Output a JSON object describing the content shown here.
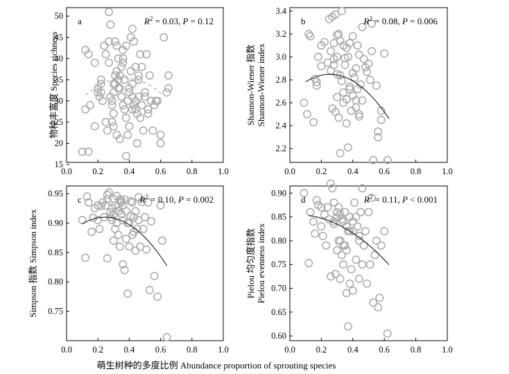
{
  "figure": {
    "x_axis_label": "萌生树种的多度比例 Abundance proportion of sprouting species"
  },
  "chart_data": [
    {
      "type": "scatter",
      "panel_label": "a",
      "stat_r2": "0.03",
      "stat_p": "P = 0.12",
      "ylabel_cn": "物种丰富度",
      "ylabel_en": "Species richness",
      "xlim": [
        0,
        1.0
      ],
      "ylim": [
        15.5,
        52
      ],
      "x_ticks": [
        "0.0",
        "0.2",
        "0.4",
        "0.6",
        "0.8",
        "1.0"
      ],
      "x_tick_values": [
        0,
        0.2,
        0.4,
        0.6,
        0.8,
        1.0
      ],
      "y_ticks": [
        "15",
        "20",
        "25",
        "30",
        "35",
        "40",
        "45",
        "50"
      ],
      "y_tick_values": [
        15,
        20,
        25,
        30,
        35,
        40,
        45,
        50
      ],
      "fit": {
        "style": "dashed",
        "coef": [
          26.5,
          48,
          -65
        ],
        "x_range": [
          0.12,
          0.62
        ]
      },
      "x": [
        0.1,
        0.12,
        0.12,
        0.14,
        0.14,
        0.15,
        0.18,
        0.18,
        0.2,
        0.2,
        0.21,
        0.22,
        0.22,
        0.23,
        0.24,
        0.25,
        0.26,
        0.27,
        0.27,
        0.28,
        0.28,
        0.29,
        0.29,
        0.3,
        0.3,
        0.3,
        0.31,
        0.31,
        0.32,
        0.32,
        0.33,
        0.33,
        0.34,
        0.34,
        0.34,
        0.35,
        0.35,
        0.36,
        0.36,
        0.36,
        0.37,
        0.37,
        0.38,
        0.38,
        0.39,
        0.39,
        0.4,
        0.4,
        0.41,
        0.41,
        0.42,
        0.42,
        0.42,
        0.43,
        0.43,
        0.44,
        0.44,
        0.45,
        0.45,
        0.46,
        0.46,
        0.47,
        0.47,
        0.48,
        0.49,
        0.5,
        0.5,
        0.51,
        0.52,
        0.52,
        0.53,
        0.54,
        0.55,
        0.56,
        0.57,
        0.58,
        0.6,
        0.6,
        0.62,
        0.64,
        0.65,
        0.65,
        0.3,
        0.32,
        0.35,
        0.38,
        0.27,
        0.25,
        0.44,
        0.48,
        0.33,
        0.4,
        0.36,
        0.29,
        0.46,
        0.31,
        0.42,
        0.22
      ],
      "y": [
        18,
        42,
        28,
        41,
        18,
        29,
        39,
        24,
        32,
        33,
        31,
        34,
        35,
        30,
        43,
        41,
        23,
        44,
        51,
        48,
        31,
        25,
        30,
        27,
        24,
        32,
        44,
        36,
        22,
        43,
        40,
        35,
        21,
        36,
        33,
        31,
        38,
        42,
        39,
        29,
        28,
        35,
        43,
        17,
        30,
        22,
        24,
        33,
        45,
        37,
        28,
        47,
        34,
        29,
        44,
        30,
        38,
        20,
        27,
        31,
        35,
        26,
        41,
        29,
        23,
        32,
        31,
        41,
        27,
        28,
        36,
        30,
        23,
        29,
        30,
        30,
        20,
        22,
        45,
        32,
        36,
        33,
        34,
        37,
        31,
        26,
        39,
        25,
        28,
        38,
        33,
        32,
        40,
        29,
        36,
        34,
        31,
        32
      ]
    },
    {
      "type": "scatter",
      "panel_label": "b",
      "stat_r2": "0.08",
      "stat_p": "P = 0.006",
      "ylabel_cn": "Shannon-Wiener 指数",
      "ylabel_en": "Shannon-Wiener index",
      "xlim": [
        0,
        1.0
      ],
      "ylim": [
        2.08,
        3.43
      ],
      "x_ticks": [
        "0.0",
        "0.2",
        "0.4",
        "0.6",
        "0.8",
        "1.0"
      ],
      "x_tick_values": [
        0,
        0.2,
        0.4,
        0.6,
        0.8,
        1.0
      ],
      "y_ticks": [
        "2.2",
        "2.4",
        "2.6",
        "2.8",
        "3.0",
        "3.2",
        "3.4"
      ],
      "y_tick_values": [
        2.2,
        2.4,
        2.6,
        2.8,
        3.0,
        3.2,
        3.4
      ],
      "fit": {
        "style": "solid",
        "coef": [
          2.67,
          1.4,
          -2.75
        ],
        "x_range": [
          0.1,
          0.63
        ]
      },
      "x": [
        0.09,
        0.11,
        0.12,
        0.13,
        0.15,
        0.16,
        0.17,
        0.17,
        0.18,
        0.2,
        0.2,
        0.22,
        0.24,
        0.25,
        0.26,
        0.26,
        0.27,
        0.27,
        0.28,
        0.28,
        0.29,
        0.29,
        0.3,
        0.3,
        0.3,
        0.31,
        0.31,
        0.32,
        0.32,
        0.33,
        0.33,
        0.34,
        0.34,
        0.35,
        0.35,
        0.36,
        0.36,
        0.37,
        0.37,
        0.38,
        0.38,
        0.39,
        0.4,
        0.4,
        0.41,
        0.42,
        0.42,
        0.43,
        0.43,
        0.44,
        0.44,
        0.45,
        0.46,
        0.46,
        0.47,
        0.48,
        0.49,
        0.5,
        0.51,
        0.52,
        0.52,
        0.53,
        0.55,
        0.56,
        0.56,
        0.58,
        0.58,
        0.6,
        0.62,
        0.28,
        0.32,
        0.34,
        0.36,
        0.4,
        0.44,
        0.3,
        0.38,
        0.42
      ],
      "y": [
        2.6,
        2.5,
        3.2,
        3.18,
        2.43,
        2.81,
        2.75,
        2.78,
        3.0,
        3.1,
        2.92,
        3.13,
        2.95,
        3.33,
        3.05,
        2.88,
        3.35,
        2.55,
        3.12,
        2.93,
        3.37,
        2.52,
        2.65,
        3.19,
        2.85,
        3.2,
        2.47,
        3.14,
        2.16,
        3.4,
        2.79,
        3.1,
        2.6,
        2.93,
        2.99,
        2.42,
        2.63,
        3.0,
        2.21,
        2.74,
        3.12,
        2.53,
        2.86,
        3.18,
        2.82,
        2.56,
        2.9,
        3.1,
        2.72,
        3.02,
        2.48,
        2.76,
        3.26,
        2.62,
        2.98,
        2.91,
        2.87,
        2.94,
        2.8,
        3.29,
        3.05,
        2.1,
        2.75,
        2.35,
        2.3,
        2.53,
        2.45,
        3.03,
        2.1,
        2.98,
        2.84,
        2.69,
        3.08,
        2.66,
        2.5,
        3.0,
        2.72,
        2.62
      ]
    },
    {
      "type": "scatter",
      "panel_label": "c",
      "stat_r2": "0.10",
      "stat_p": "P = 0.002",
      "ylabel_cn": "Simpson 指数",
      "ylabel_en": "Simpson index",
      "xlim": [
        0,
        1.0
      ],
      "ylim": [
        0.7,
        0.963
      ],
      "x_ticks": [
        "0.0",
        "0.2",
        "0.4",
        "0.6",
        "0.8",
        "1.0"
      ],
      "x_tick_values": [
        0,
        0.2,
        0.4,
        0.6,
        0.8,
        1.0
      ],
      "y_ticks": [
        "0.75",
        "0.80",
        "0.85",
        "0.90",
        "0.95"
      ],
      "y_tick_values": [
        0.75,
        0.8,
        0.85,
        0.9,
        0.95
      ],
      "fit": {
        "style": "solid",
        "coef": [
          0.878,
          0.26,
          -0.53
        ],
        "x_range": [
          0.1,
          0.64
        ]
      },
      "x": [
        0.1,
        0.12,
        0.13,
        0.14,
        0.16,
        0.17,
        0.18,
        0.2,
        0.2,
        0.21,
        0.22,
        0.23,
        0.24,
        0.25,
        0.26,
        0.26,
        0.27,
        0.28,
        0.28,
        0.29,
        0.3,
        0.3,
        0.31,
        0.31,
        0.32,
        0.32,
        0.33,
        0.33,
        0.34,
        0.34,
        0.35,
        0.35,
        0.36,
        0.36,
        0.37,
        0.37,
        0.38,
        0.38,
        0.39,
        0.4,
        0.4,
        0.41,
        0.41,
        0.42,
        0.42,
        0.43,
        0.44,
        0.44,
        0.45,
        0.46,
        0.46,
        0.47,
        0.48,
        0.49,
        0.5,
        0.51,
        0.52,
        0.53,
        0.54,
        0.56,
        0.58,
        0.6,
        0.61,
        0.64,
        0.26,
        0.29,
        0.33,
        0.36,
        0.39,
        0.43,
        0.3,
        0.35
      ],
      "y": [
        0.905,
        0.841,
        0.945,
        0.935,
        0.885,
        0.909,
        0.925,
        0.93,
        0.905,
        0.89,
        0.929,
        0.935,
        0.91,
        0.93,
        0.948,
        0.84,
        0.952,
        0.918,
        0.91,
        0.905,
        0.941,
        0.87,
        0.93,
        0.89,
        0.946,
        0.9,
        0.928,
        0.88,
        0.94,
        0.86,
        0.938,
        0.915,
        0.93,
        0.83,
        0.94,
        0.82,
        0.92,
        0.873,
        0.78,
        0.9,
        0.86,
        0.937,
        0.912,
        0.935,
        0.88,
        0.91,
        0.92,
        0.853,
        0.89,
        0.944,
        0.905,
        0.86,
        0.936,
        0.89,
        0.91,
        0.855,
        0.935,
        0.786,
        0.903,
        0.81,
        0.775,
        0.93,
        0.87,
        0.706,
        0.94,
        0.925,
        0.92,
        0.905,
        0.9,
        0.885,
        0.915,
        0.935
      ]
    },
    {
      "type": "scatter",
      "panel_label": "d",
      "stat_r2": "0.11",
      "stat_p": "P < 0.001",
      "ylabel_cn": "Pielou 均匀度指数",
      "ylabel_en": "Pielou evenness index",
      "xlim": [
        0,
        1.0
      ],
      "ylim": [
        0.59,
        0.915
      ],
      "x_ticks": [
        "0.0",
        "0.2",
        "0.4",
        "0.6",
        "0.8",
        "1.0"
      ],
      "x_tick_values": [
        0,
        0.2,
        0.4,
        0.6,
        0.8,
        1.0
      ],
      "y_ticks": [
        "0.60",
        "0.65",
        "0.70",
        "0.75",
        "0.80",
        "0.85",
        "0.90"
      ],
      "y_tick_values": [
        0.6,
        0.65,
        0.7,
        0.75,
        0.8,
        0.85,
        0.9
      ],
      "fit": {
        "style": "solid",
        "coef": [
          0.8537,
          0.03,
          -0.31
        ],
        "x_range": [
          0.12,
          0.63
        ]
      },
      "x": [
        0.09,
        0.12,
        0.13,
        0.15,
        0.16,
        0.17,
        0.18,
        0.2,
        0.2,
        0.21,
        0.22,
        0.23,
        0.24,
        0.25,
        0.26,
        0.26,
        0.27,
        0.28,
        0.28,
        0.29,
        0.3,
        0.3,
        0.31,
        0.31,
        0.32,
        0.32,
        0.33,
        0.33,
        0.34,
        0.34,
        0.35,
        0.35,
        0.36,
        0.36,
        0.37,
        0.37,
        0.38,
        0.38,
        0.39,
        0.4,
        0.4,
        0.41,
        0.42,
        0.42,
        0.43,
        0.44,
        0.44,
        0.45,
        0.46,
        0.46,
        0.47,
        0.48,
        0.49,
        0.5,
        0.51,
        0.52,
        0.53,
        0.54,
        0.55,
        0.56,
        0.57,
        0.58,
        0.6,
        0.62,
        0.28,
        0.32,
        0.36,
        0.4,
        0.44,
        0.3,
        0.34,
        0.38
      ],
      "y": [
        0.9,
        0.753,
        0.86,
        0.84,
        0.815,
        0.885,
        0.875,
        0.83,
        0.87,
        0.81,
        0.855,
        0.79,
        0.87,
        0.845,
        0.725,
        0.92,
        0.91,
        0.88,
        0.84,
        0.73,
        0.86,
        0.78,
        0.87,
        0.8,
        0.855,
        0.72,
        0.845,
        0.77,
        0.84,
        0.75,
        0.86,
        0.79,
        0.83,
        0.69,
        0.82,
        0.62,
        0.85,
        0.71,
        0.74,
        0.82,
        0.695,
        0.88,
        0.76,
        0.85,
        0.83,
        0.72,
        0.8,
        0.86,
        0.75,
        0.91,
        0.79,
        0.82,
        0.71,
        0.86,
        0.75,
        0.89,
        0.67,
        0.77,
        0.8,
        0.66,
        0.68,
        0.79,
        0.82,
        0.605,
        0.835,
        0.8,
        0.78,
        0.84,
        0.81,
        0.85,
        0.79,
        0.82
      ]
    }
  ]
}
